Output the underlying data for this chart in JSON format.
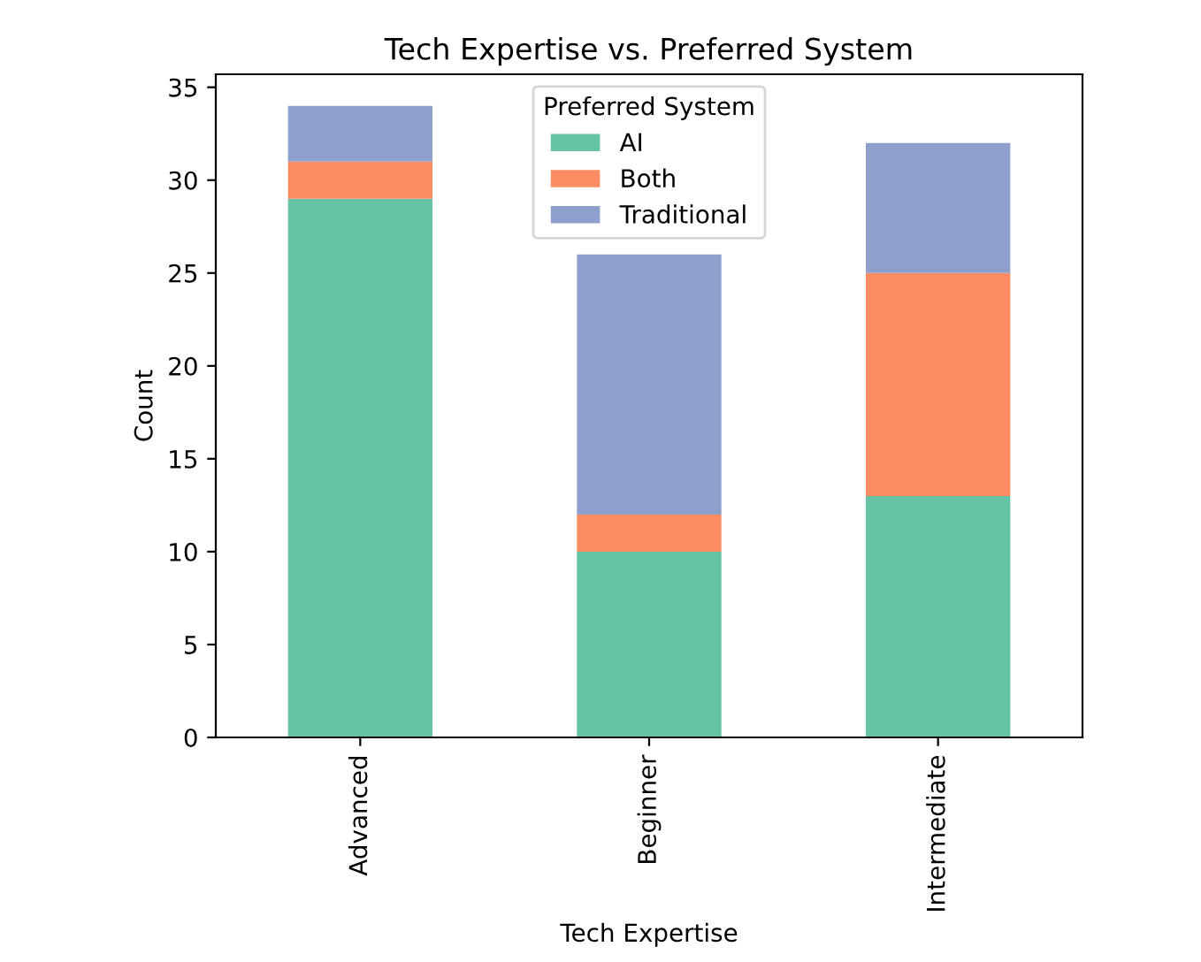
{
  "chart_data": {
    "type": "bar",
    "title": "Tech Expertise vs. Preferred System",
    "xlabel": "Tech Expertise",
    "ylabel": "Count",
    "legend_title": "Preferred System",
    "categories": [
      "Advanced",
      "Beginner",
      "Intermediate"
    ],
    "stacked": true,
    "series": [
      {
        "name": "AI",
        "color": "#66c2a5",
        "values": [
          29,
          10,
          13
        ]
      },
      {
        "name": "Both",
        "color": "#fc8d62",
        "values": [
          2,
          2,
          12
        ]
      },
      {
        "name": "Traditional",
        "color": "#8da0cb",
        "values": [
          3,
          14,
          7
        ]
      }
    ],
    "ylim": [
      0,
      35.7
    ],
    "yticks": [
      0,
      5,
      10,
      15,
      20,
      25,
      30,
      35
    ],
    "grid": false,
    "legend": "top center"
  }
}
